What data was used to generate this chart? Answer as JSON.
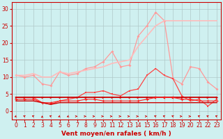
{
  "x": [
    0,
    1,
    2,
    3,
    4,
    5,
    6,
    7,
    8,
    9,
    10,
    11,
    12,
    13,
    14,
    15,
    16,
    17,
    18,
    19,
    20,
    21,
    22,
    23
  ],
  "line_rafales": [
    10.5,
    10.0,
    10.5,
    8.0,
    7.5,
    11.5,
    10.5,
    11.0,
    12.5,
    13.0,
    14.5,
    17.5,
    13.0,
    13.5,
    22.0,
    25.0,
    29.0,
    26.5,
    9.5,
    8.0,
    13.0,
    12.5,
    8.5,
    6.5
  ],
  "line_trend1": [
    10.5,
    10.5,
    11.0,
    10.0,
    10.0,
    11.5,
    11.0,
    11.5,
    12.0,
    12.5,
    13.0,
    14.0,
    14.5,
    15.0,
    19.0,
    22.0,
    25.0,
    26.5,
    26.5,
    26.5,
    26.5,
    26.5,
    26.5,
    26.5
  ],
  "line_moyen": [
    4.0,
    4.0,
    4.0,
    2.5,
    2.0,
    3.0,
    3.5,
    4.0,
    5.5,
    5.5,
    6.0,
    5.0,
    4.5,
    6.0,
    6.5,
    10.5,
    12.5,
    10.5,
    9.5,
    4.5,
    3.0,
    3.5,
    1.5,
    3.5
  ],
  "line_flat1": [
    4.0,
    4.0,
    4.0,
    4.0,
    4.0,
    4.0,
    4.0,
    4.0,
    4.0,
    4.0,
    4.0,
    4.0,
    4.0,
    4.0,
    4.0,
    4.0,
    4.0,
    4.0,
    4.0,
    4.0,
    4.0,
    4.0,
    4.0,
    4.0
  ],
  "line_flat2": [
    3.5,
    3.5,
    3.5,
    2.5,
    2.5,
    3.0,
    3.0,
    3.0,
    3.5,
    3.5,
    3.0,
    3.0,
    3.0,
    3.0,
    3.0,
    3.5,
    4.0,
    4.0,
    4.0,
    3.5,
    3.5,
    3.0,
    3.0,
    3.0
  ],
  "line_flat3": [
    3.0,
    3.0,
    3.0,
    2.5,
    2.0,
    2.5,
    2.5,
    2.5,
    2.5,
    2.5,
    2.5,
    2.5,
    2.5,
    2.5,
    2.5,
    2.5,
    2.5,
    2.5,
    2.5,
    2.5,
    2.5,
    2.5,
    2.5,
    2.5
  ],
  "arrow_angles": [
    225,
    135,
    135,
    90,
    135,
    225,
    225,
    0,
    0,
    0,
    0,
    0,
    0,
    0,
    0,
    0,
    135,
    135,
    135,
    0,
    0,
    135,
    135,
    135
  ],
  "bg_color": "#cff0f0",
  "grid_color": "#b0c8c8",
  "xlabel": "Vent moyen/en rafales ( km/h )",
  "ylim": [
    -2.5,
    32
  ],
  "xlim": [
    -0.5,
    23.5
  ],
  "yticks": [
    0,
    5,
    10,
    15,
    20,
    25,
    30
  ],
  "xticks": [
    0,
    1,
    2,
    3,
    4,
    5,
    6,
    7,
    8,
    9,
    10,
    11,
    12,
    13,
    14,
    15,
    16,
    17,
    18,
    19,
    20,
    21,
    22,
    23
  ]
}
